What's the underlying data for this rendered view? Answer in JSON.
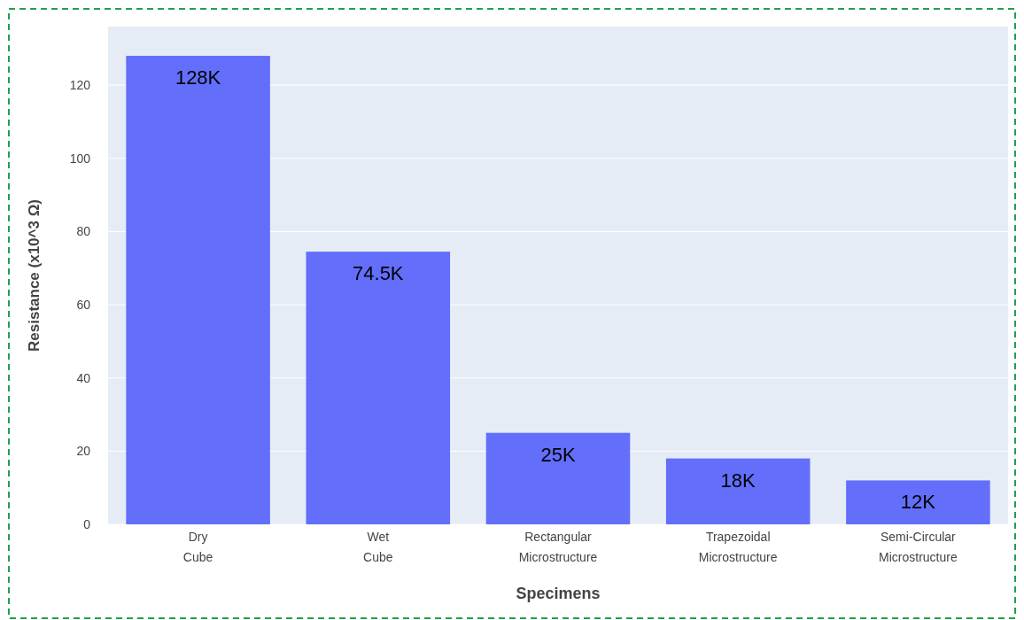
{
  "chart_data": {
    "type": "bar",
    "xlabel": "Specimens",
    "ylabel": "Resistance (x10^3 Ω)",
    "categories": [
      "Dry Cube",
      "Wet Cube",
      "Rectangular Microstructure",
      "Trapezoidal Microstructure",
      "Semi-Circular Microstructure"
    ],
    "values": [
      128,
      74.5,
      25,
      18,
      12
    ],
    "value_labels": [
      "128K",
      "74.5K",
      "25K",
      "18K",
      "12K"
    ],
    "color": "#636efa",
    "ylim": [
      0,
      136
    ],
    "yticks": [
      0,
      20,
      40,
      60,
      80,
      100,
      120
    ],
    "grid": "y"
  }
}
